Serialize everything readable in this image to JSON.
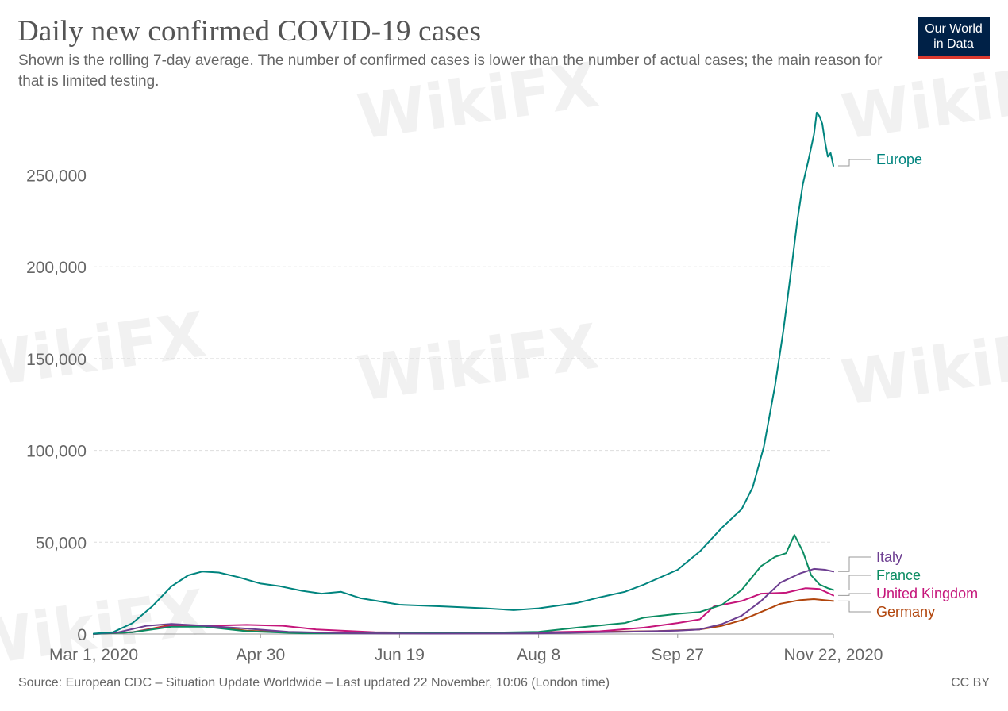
{
  "header": {
    "title": "Daily new confirmed COVID-19 cases",
    "subtitle": "Shown is the rolling 7-day average. The number of confirmed cases is lower than the number of actual cases; the main reason for that is limited testing.",
    "logo_line1": "Our World",
    "logo_line2": "in Data"
  },
  "footer": {
    "source": "Source: European CDC – Situation Update Worldwide – Last updated 22 November, 10:06 (London time)",
    "license": "CC BY"
  },
  "watermark": "WikiFX",
  "colors": {
    "Europe": "#00847e",
    "Italy": "#6d3e91",
    "France": "#0b8c62",
    "United Kingdom": "#c5167b",
    "Germany": "#b1450c",
    "grid": "#dddddd",
    "axis": "#999999"
  },
  "chart_data": {
    "type": "line",
    "title": "Daily new confirmed COVID-19 cases",
    "xlabel": "",
    "ylabel": "",
    "x_range": [
      "2020-03-01",
      "2020-11-22"
    ],
    "ylim": [
      0,
      290000
    ],
    "x_ticks": [
      {
        "date": "2020-03-01",
        "label": "Mar 1, 2020"
      },
      {
        "date": "2020-04-30",
        "label": "Apr 30"
      },
      {
        "date": "2020-06-19",
        "label": "Jun 19"
      },
      {
        "date": "2020-08-08",
        "label": "Aug 8"
      },
      {
        "date": "2020-09-27",
        "label": "Sep 27"
      },
      {
        "date": "2020-11-22",
        "label": "Nov 22, 2020"
      }
    ],
    "y_ticks": [
      {
        "value": 0,
        "label": "0"
      },
      {
        "value": 50000,
        "label": "50,000"
      },
      {
        "value": 100000,
        "label": "100,000"
      },
      {
        "value": 150000,
        "label": "150,000"
      },
      {
        "value": 200000,
        "label": "200,000"
      },
      {
        "value": 250000,
        "label": "250,000"
      }
    ],
    "grid": "horizontal dashed",
    "legend": "right, labels at line ends",
    "series": [
      {
        "name": "Europe",
        "points": [
          [
            "2020-03-01",
            200
          ],
          [
            "2020-03-08",
            1000
          ],
          [
            "2020-03-15",
            6000
          ],
          [
            "2020-03-22",
            15000
          ],
          [
            "2020-03-29",
            26000
          ],
          [
            "2020-04-04",
            32000
          ],
          [
            "2020-04-09",
            34000
          ],
          [
            "2020-04-15",
            33500
          ],
          [
            "2020-04-22",
            31000
          ],
          [
            "2020-04-30",
            27500
          ],
          [
            "2020-05-07",
            26000
          ],
          [
            "2020-05-15",
            23500
          ],
          [
            "2020-05-22",
            22000
          ],
          [
            "2020-05-29",
            23000
          ],
          [
            "2020-06-05",
            19500
          ],
          [
            "2020-06-19",
            16000
          ],
          [
            "2020-07-05",
            15000
          ],
          [
            "2020-07-20",
            14000
          ],
          [
            "2020-07-30",
            13000
          ],
          [
            "2020-08-08",
            14000
          ],
          [
            "2020-08-22",
            17000
          ],
          [
            "2020-08-30",
            20000
          ],
          [
            "2020-09-08",
            23000
          ],
          [
            "2020-09-15",
            27000
          ],
          [
            "2020-09-27",
            35000
          ],
          [
            "2020-10-05",
            45000
          ],
          [
            "2020-10-13",
            58000
          ],
          [
            "2020-10-20",
            68000
          ],
          [
            "2020-10-24",
            80000
          ],
          [
            "2020-10-28",
            102000
          ],
          [
            "2020-11-01",
            135000
          ],
          [
            "2020-11-04",
            165000
          ],
          [
            "2020-11-07",
            200000
          ],
          [
            "2020-11-09",
            225000
          ],
          [
            "2020-11-11",
            245000
          ],
          [
            "2020-11-13",
            258000
          ],
          [
            "2020-11-15",
            272000
          ],
          [
            "2020-11-16",
            284000
          ],
          [
            "2020-11-17",
            282000
          ],
          [
            "2020-11-18",
            278000
          ],
          [
            "2020-11-19",
            268000
          ],
          [
            "2020-11-20",
            260000
          ],
          [
            "2020-11-21",
            262000
          ],
          [
            "2020-11-22",
            255000
          ]
        ]
      },
      {
        "name": "Italy",
        "points": [
          [
            "2020-03-01",
            100
          ],
          [
            "2020-03-10",
            1000
          ],
          [
            "2020-03-20",
            4500
          ],
          [
            "2020-03-29",
            5500
          ],
          [
            "2020-04-10",
            4500
          ],
          [
            "2020-04-25",
            3000
          ],
          [
            "2020-05-10",
            1200
          ],
          [
            "2020-06-01",
            400
          ],
          [
            "2020-07-01",
            200
          ],
          [
            "2020-08-08",
            300
          ],
          [
            "2020-09-08",
            1200
          ],
          [
            "2020-09-27",
            1800
          ],
          [
            "2020-10-05",
            2500
          ],
          [
            "2020-10-13",
            5500
          ],
          [
            "2020-10-20",
            10000
          ],
          [
            "2020-10-27",
            18000
          ],
          [
            "2020-11-03",
            28000
          ],
          [
            "2020-11-10",
            33000
          ],
          [
            "2020-11-15",
            35500
          ],
          [
            "2020-11-19",
            35000
          ],
          [
            "2020-11-22",
            34000
          ]
        ]
      },
      {
        "name": "France",
        "points": [
          [
            "2020-03-01",
            50
          ],
          [
            "2020-03-15",
            1000
          ],
          [
            "2020-03-29",
            4000
          ],
          [
            "2020-04-10",
            4000
          ],
          [
            "2020-04-25",
            1500
          ],
          [
            "2020-05-15",
            400
          ],
          [
            "2020-06-15",
            400
          ],
          [
            "2020-07-15",
            500
          ],
          [
            "2020-08-08",
            1200
          ],
          [
            "2020-08-22",
            3500
          ],
          [
            "2020-09-08",
            6000
          ],
          [
            "2020-09-15",
            9000
          ],
          [
            "2020-09-27",
            11000
          ],
          [
            "2020-10-05",
            12000
          ],
          [
            "2020-10-13",
            16000
          ],
          [
            "2020-10-20",
            24000
          ],
          [
            "2020-10-27",
            37000
          ],
          [
            "2020-11-01",
            42000
          ],
          [
            "2020-11-05",
            44000
          ],
          [
            "2020-11-08",
            54000
          ],
          [
            "2020-11-11",
            45000
          ],
          [
            "2020-11-14",
            32000
          ],
          [
            "2020-11-17",
            27000
          ],
          [
            "2020-11-20",
            25000
          ],
          [
            "2020-11-22",
            24000
          ]
        ]
      },
      {
        "name": "United Kingdom",
        "points": [
          [
            "2020-03-01",
            100
          ],
          [
            "2020-03-15",
            1000
          ],
          [
            "2020-03-29",
            4500
          ],
          [
            "2020-04-10",
            4500
          ],
          [
            "2020-04-25",
            5000
          ],
          [
            "2020-05-08",
            4500
          ],
          [
            "2020-05-20",
            2500
          ],
          [
            "2020-06-10",
            1000
          ],
          [
            "2020-07-05",
            600
          ],
          [
            "2020-08-08",
            900
          ],
          [
            "2020-08-30",
            1500
          ],
          [
            "2020-09-15",
            3500
          ],
          [
            "2020-09-27",
            6000
          ],
          [
            "2020-10-05",
            8000
          ],
          [
            "2020-10-10",
            15000
          ],
          [
            "2020-10-20",
            18000
          ],
          [
            "2020-10-27",
            22000
          ],
          [
            "2020-11-05",
            22500
          ],
          [
            "2020-11-12",
            25000
          ],
          [
            "2020-11-17",
            24500
          ],
          [
            "2020-11-22",
            21000
          ]
        ]
      },
      {
        "name": "Germany",
        "points": [
          [
            "2020-03-01",
            50
          ],
          [
            "2020-03-15",
            1000
          ],
          [
            "2020-03-29",
            5000
          ],
          [
            "2020-04-10",
            4500
          ],
          [
            "2020-04-25",
            1800
          ],
          [
            "2020-05-15",
            700
          ],
          [
            "2020-06-15",
            400
          ],
          [
            "2020-07-15",
            500
          ],
          [
            "2020-08-08",
            800
          ],
          [
            "2020-08-30",
            1200
          ],
          [
            "2020-09-20",
            1600
          ],
          [
            "2020-09-27",
            2000
          ],
          [
            "2020-10-05",
            2500
          ],
          [
            "2020-10-13",
            4500
          ],
          [
            "2020-10-20",
            7500
          ],
          [
            "2020-10-27",
            12000
          ],
          [
            "2020-11-03",
            16500
          ],
          [
            "2020-11-10",
            18500
          ],
          [
            "2020-11-15",
            19000
          ],
          [
            "2020-11-22",
            18000
          ]
        ]
      }
    ]
  }
}
